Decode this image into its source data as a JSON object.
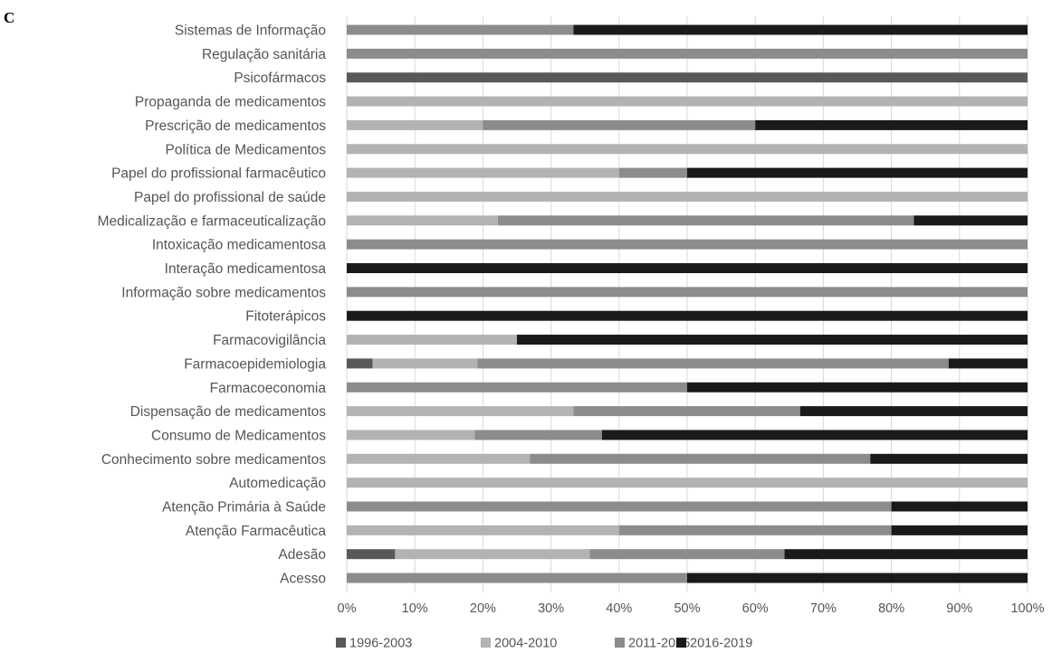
{
  "panel_label": "C",
  "chart_data": {
    "type": "bar",
    "orientation": "horizontal",
    "stacked": "percent",
    "categories": [
      "Sistemas de Informação",
      "Regulação sanitária",
      "Psicofármacos",
      "Propaganda de medicamentos",
      "Prescrição de medicamentos",
      "Política de Medicamentos",
      "Papel do profissional farmacêutico",
      "Papel do profissional de saúde",
      "Medicalização e farmaceuticalização",
      "Intoxicação medicamentosa",
      "Interação medicamentosa",
      "Informação sobre medicamentos",
      "Fitoterápicos",
      "Farmacovigilância",
      "Farmacoepidemiologia",
      "Farmacoeconomia",
      "Dispensação de medicamentos",
      "Consumo de Medicamentos",
      "Conhecimento sobre medicamentos",
      "Automedicação",
      "Atenção Primária à Saúde",
      "Atenção Farmacêutica",
      "Adesão",
      "Acesso"
    ],
    "series": [
      {
        "name": "1996-2003",
        "color": "#595959",
        "values": [
          0,
          0,
          100,
          0,
          0,
          0,
          0,
          0,
          0,
          0,
          0,
          0,
          0,
          0,
          3.8,
          0,
          0,
          0,
          0,
          0,
          0,
          0,
          7.1,
          0
        ]
      },
      {
        "name": "2004-2010",
        "color": "#b3b3b3",
        "values": [
          0,
          0,
          0,
          100,
          20,
          100,
          40,
          100,
          22.2,
          0,
          0,
          0,
          0,
          25,
          15.4,
          0,
          33.3,
          18.8,
          26.9,
          100,
          0,
          40,
          28.6,
          0
        ]
      },
      {
        "name": "2011-2015",
        "color": "#8c8c8c",
        "values": [
          33.3,
          100,
          0,
          0,
          40,
          0,
          10,
          0,
          61.1,
          100,
          0,
          100,
          0,
          0,
          69.2,
          50,
          33.3,
          18.7,
          50,
          0,
          80,
          40,
          28.6,
          50
        ]
      },
      {
        "name": "2016-2019",
        "color": "#1a1a1a",
        "values": [
          66.7,
          0,
          0,
          0,
          40,
          0,
          50,
          0,
          16.7,
          0,
          100,
          0,
          100,
          75,
          11.6,
          50,
          33.4,
          62.5,
          23.1,
          0,
          20,
          20,
          35.7,
          50
        ]
      }
    ],
    "x_ticks": [
      "0%",
      "10%",
      "20%",
      "30%",
      "40%",
      "50%",
      "60%",
      "70%",
      "80%",
      "90%",
      "100%"
    ],
    "xlim": [
      0,
      100
    ],
    "grid": "vertical",
    "legend_position": "bottom",
    "title": "",
    "xlabel": "",
    "ylabel": ""
  }
}
